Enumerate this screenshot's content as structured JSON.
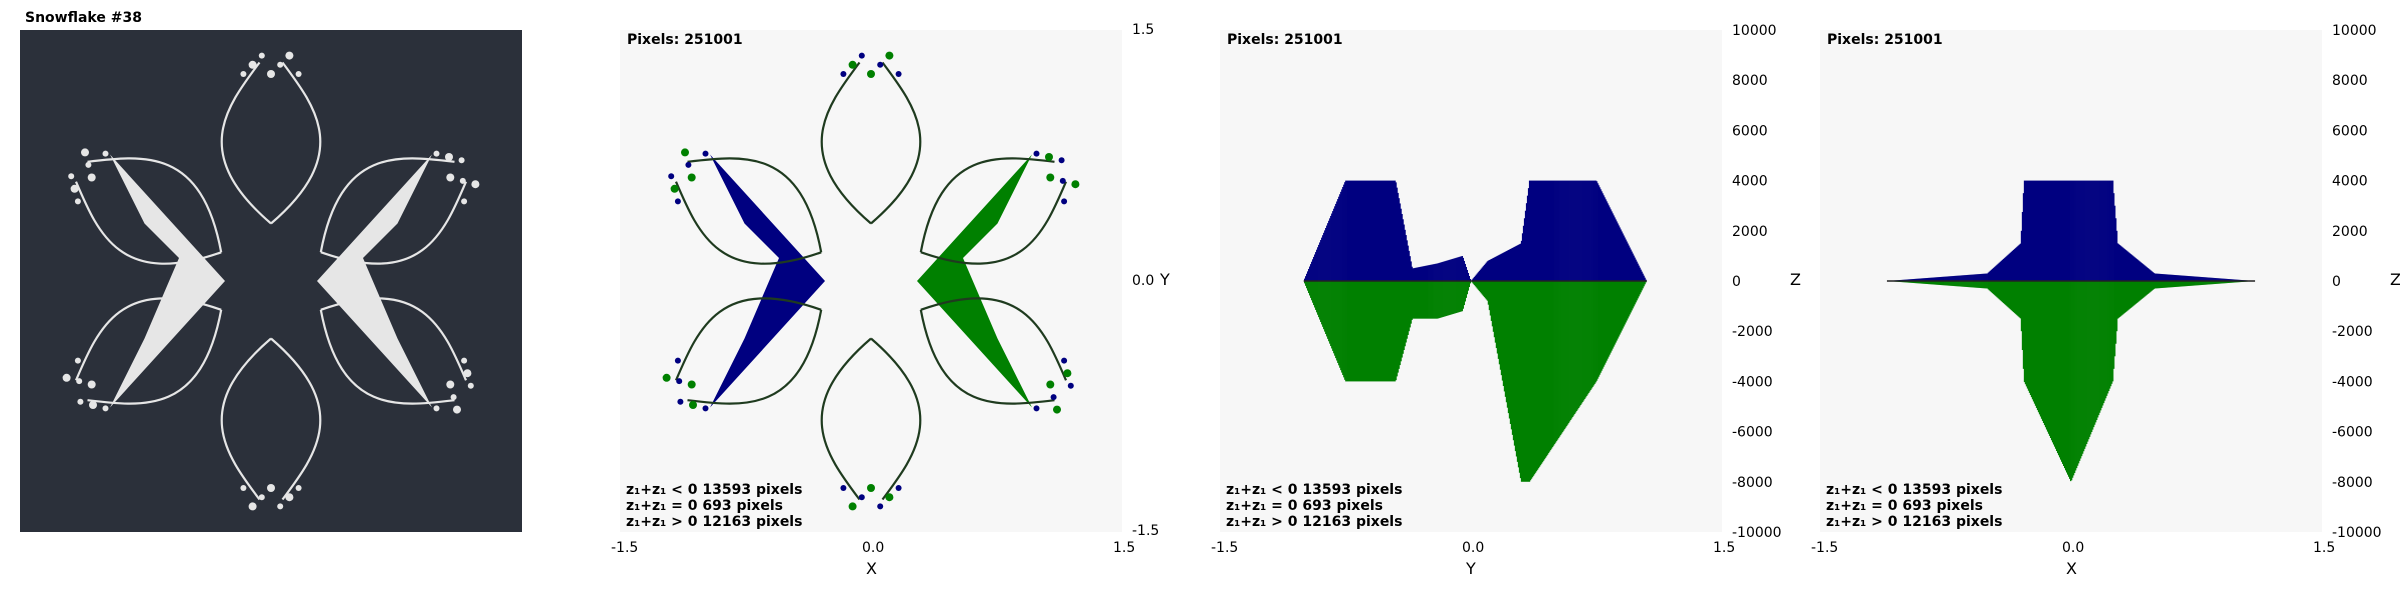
{
  "title": "Snowflake #38",
  "colors": {
    "background": "#2b303a",
    "snowflake": "#e6e6e6",
    "neg": "#008000",
    "zero": "#800000",
    "pos": "#000080",
    "panel_bg": "#f7f7f7"
  },
  "legend": {
    "neg": "z₁+z₁ < 0  13593 pixels",
    "zero": "z₁+z₁ = 0  693 pixels",
    "pos": "z₁+z₁ > 0  12163 pixels"
  },
  "chart_data": [
    {
      "type": "scatter",
      "pixels_label": "Pixels: 251001",
      "xlabel": "X",
      "ylabel": "Y",
      "xlim": [
        -1.5,
        1.5
      ],
      "ylim": [
        -1.5,
        1.5
      ],
      "xticks": [
        "-1.5",
        "0.0",
        "1.5"
      ],
      "yticks": [
        "1.5",
        "0.0",
        "-1.5"
      ],
      "legend_counts": {
        "neg": 13593,
        "zero": 693,
        "pos": 12163
      }
    },
    {
      "type": "bar",
      "pixels_label": "Pixels: 251001",
      "xlabel": "Y",
      "ylabel": "Z",
      "xlim": [
        -1.5,
        1.5
      ],
      "ylim": [
        -10000,
        10000
      ],
      "xticks": [
        "-1.5",
        "0.0",
        "1.5"
      ],
      "yticks": [
        "10000",
        "8000",
        "6000",
        "4000",
        "2000",
        "0",
        "-2000",
        "-4000",
        "-6000",
        "-8000",
        "-10000"
      ],
      "legend_counts": {
        "neg": 13593,
        "zero": 693,
        "pos": 12163
      },
      "series": [
        {
          "x": [
            -1.0,
            -0.75,
            -0.45,
            -0.35,
            -0.2,
            -0.05,
            0.0,
            0.1,
            0.3,
            0.35,
            0.75,
            1.05
          ],
          "pos": [
            0,
            4000,
            4000,
            500,
            700,
            1000,
            0,
            800,
            1500,
            4000,
            4000,
            0
          ],
          "neg": [
            0,
            -4000,
            -4000,
            -1500,
            -1500,
            -1200,
            0,
            -800,
            -8000,
            -8000,
            -4000,
            0
          ]
        }
      ]
    },
    {
      "type": "bar",
      "pixels_label": "Pixels: 251001",
      "xlabel": "X",
      "ylabel": "Z",
      "xlim": [
        -1.5,
        1.5
      ],
      "ylim": [
        -10000,
        10000
      ],
      "xticks": [
        "-1.5",
        "0.0",
        "1.5"
      ],
      "yticks": [
        "10000",
        "8000",
        "6000",
        "4000",
        "2000",
        "0",
        "-2000",
        "-4000",
        "-6000",
        "-8000",
        "-10000"
      ],
      "legend_counts": {
        "neg": 13593,
        "zero": 693,
        "pos": 12163
      },
      "series": [
        {
          "x": [
            -1.1,
            -0.5,
            -0.3,
            -0.28,
            0.0,
            0.25,
            0.28,
            0.5,
            1.1
          ],
          "pos": [
            0,
            300,
            1500,
            4000,
            4000,
            4000,
            1500,
            300,
            0
          ],
          "neg": [
            0,
            -300,
            -1500,
            -4000,
            -8000,
            -4000,
            -1500,
            -300,
            0
          ]
        }
      ]
    }
  ]
}
